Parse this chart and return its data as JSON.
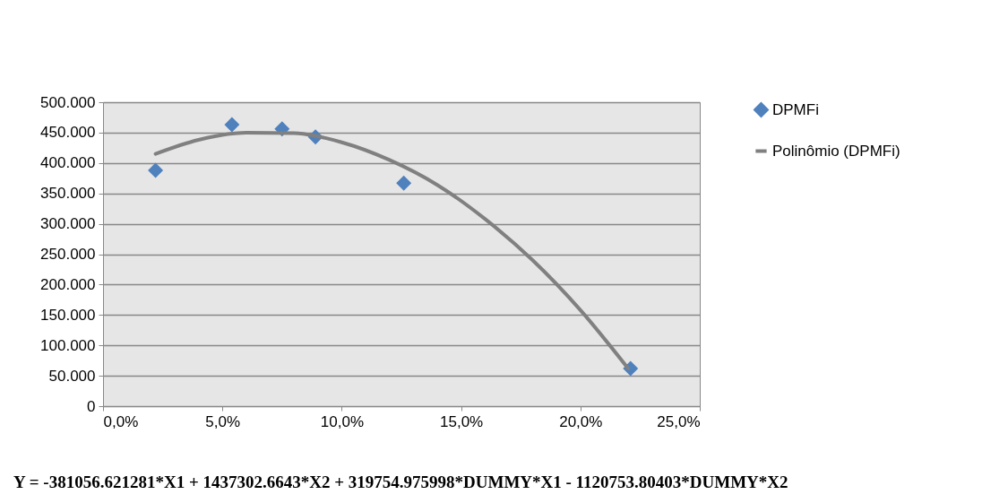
{
  "chart_data": {
    "type": "scatter",
    "xlim": [
      0,
      25
    ],
    "xticks": [
      {
        "value": 0,
        "label": "0,0%"
      },
      {
        "value": 5,
        "label": "5,0%"
      },
      {
        "value": 10,
        "label": "10,0%"
      },
      {
        "value": 15,
        "label": "15,0%"
      },
      {
        "value": 20,
        "label": "20,0%"
      },
      {
        "value": 25,
        "label": "25,0%"
      }
    ],
    "ylim": [
      0,
      500000
    ],
    "yticks": [
      {
        "value": 0,
        "label": "0"
      },
      {
        "value": 50000,
        "label": "50.000"
      },
      {
        "value": 100000,
        "label": "100.000"
      },
      {
        "value": 150000,
        "label": "150.000"
      },
      {
        "value": 200000,
        "label": "200.000"
      },
      {
        "value": 250000,
        "label": "250.000"
      },
      {
        "value": 300000,
        "label": "300.000"
      },
      {
        "value": 350000,
        "label": "350.000"
      },
      {
        "value": 400000,
        "label": "400.000"
      },
      {
        "value": 450000,
        "label": "450.000"
      },
      {
        "value": 500000,
        "label": "500.000"
      }
    ],
    "series": [
      {
        "name": "DPMFi",
        "color": "#4f81bd",
        "marker": "diamond",
        "x": [
          2.2,
          5.4,
          7.5,
          8.9,
          12.6,
          22.1
        ],
        "values": [
          388000,
          463000,
          456000,
          443000,
          367000,
          62000
        ]
      },
      {
        "name": "Polinômio (DPMFi)",
        "type": "line",
        "color": "#808080",
        "marker": "none",
        "x": [
          2.2,
          4,
          6,
          8,
          10,
          12,
          14,
          16,
          18,
          20,
          22
        ],
        "values": [
          415000,
          438000,
          450000,
          449000,
          434000,
          405000,
          364000,
          308000,
          240000,
          158000,
          62000
        ]
      }
    ],
    "grid": "y",
    "legend": "right",
    "annotations": [
      "Y = -381056.621281*X1 + 1437302.6643*X2 + 319754.975998*DUMMY*X1 - 1120753.80403*DUMMY*X2"
    ]
  }
}
